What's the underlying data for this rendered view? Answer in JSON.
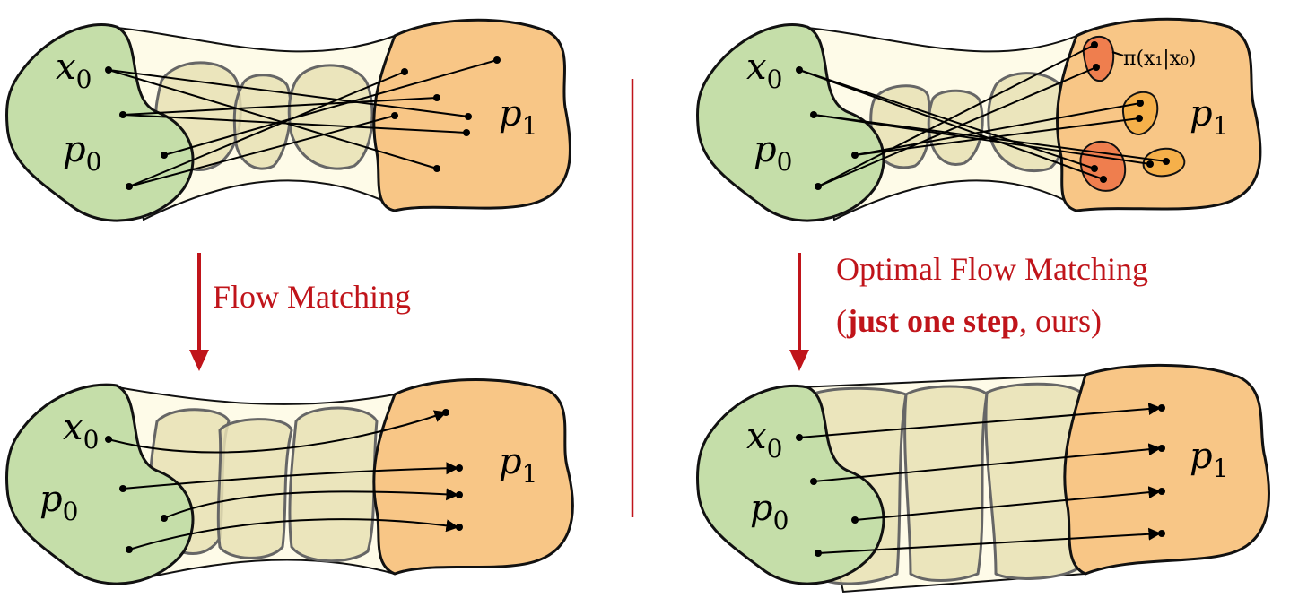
{
  "labels": {
    "x0": "x",
    "x0_sub": "0",
    "p0": "p",
    "p0_sub": "0",
    "p1": "p",
    "p1_sub": "1",
    "pi_label": "π(x₁|x₀)"
  },
  "captions": {
    "left": "Flow Matching",
    "right_line1": "Optimal Flow Matching",
    "right_line2_open": "(",
    "right_line2_bold": "just one step",
    "right_line2_rest": ", ours)"
  },
  "colors": {
    "accent_red": "#c0141a",
    "p0_fill": "#c5dea9",
    "p1_fill": "#f8c686",
    "intermediate_fill": "#e7e0b4",
    "conditional_fill": "#ef7e4e",
    "conditional_fill_light": "#f5b04a"
  }
}
